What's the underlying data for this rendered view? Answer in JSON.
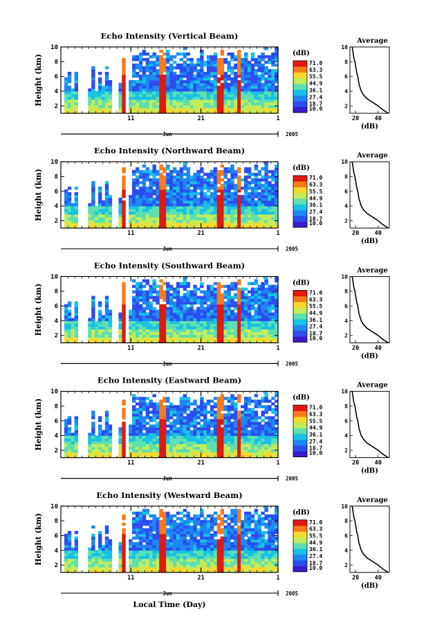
{
  "chart_data": {
    "type": "heatmap",
    "xlabel": "Local Time (Day)",
    "month_label": "Jun",
    "year_label": "2005",
    "x_tick_labels": [
      "11",
      "21",
      "1"
    ],
    "ylabel": "Height (km)",
    "y_tick_labels": [
      "2",
      "4",
      "6",
      "8",
      "10"
    ],
    "ylim": [
      1,
      10
    ],
    "colorbar": {
      "unit": "(dB)",
      "levels": [
        "71.0",
        "63.3",
        "55.5",
        "44.9",
        "36.1",
        "27.4",
        "18.7",
        "10.0"
      ],
      "colors": [
        "#3a1cc8",
        "#2b4ef0",
        "#1e88f2",
        "#17c2e6",
        "#5ce0b0",
        "#c2ec5a",
        "#f8d82c",
        "#f87a1c",
        "#e01a0e"
      ]
    },
    "profile": {
      "title": "Average",
      "xlabel": "(dB)",
      "x_tick_labels": [
        "20",
        "40"
      ],
      "xlim": [
        15,
        50
      ],
      "height_km": [
        1.0,
        1.5,
        2.0,
        2.5,
        3.0,
        3.5,
        4.0,
        4.5,
        5.0,
        5.5,
        6.0,
        6.5,
        7.0,
        7.5,
        8.0,
        8.5,
        9.0,
        9.5,
        10.0
      ],
      "echo_db": [
        49.0,
        44.0,
        40.0,
        35.0,
        30.0,
        27.0,
        25.0,
        24.0,
        23.0,
        22.5,
        22.0,
        21.0,
        20.5,
        20.0,
        19.5,
        18.5,
        18.0,
        17.5,
        17.0
      ]
    },
    "panels": [
      {
        "title": "Echo Intensity (Vertical Beam)"
      },
      {
        "title": "Echo Intensity (Northward Beam)"
      },
      {
        "title": "Echo Intensity (Southward Beam)"
      },
      {
        "title": "Echo Intensity (Eastward Beam)"
      },
      {
        "title": "Echo Intensity (Westward Beam)"
      }
    ]
  }
}
